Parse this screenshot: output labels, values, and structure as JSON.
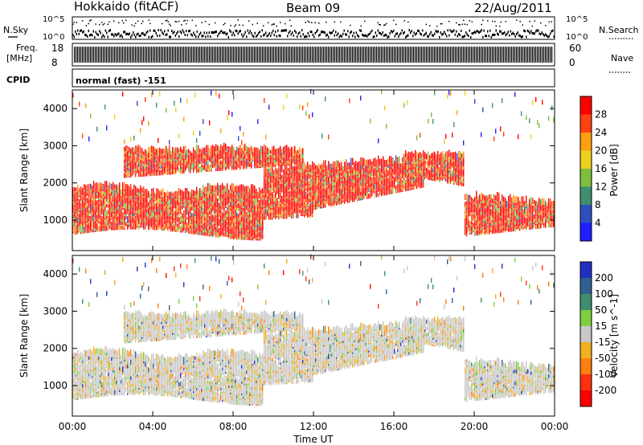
{
  "header": {
    "station": "Hokkaido (fitACF)",
    "beam": "Beam 09",
    "date": "22/Aug/2011"
  },
  "top_panels": {
    "nsky_label": "N.Sky",
    "nsky_ticks": [
      "10^5",
      "10^0"
    ],
    "nsearch_label": "N.Search",
    "freq_label": "Freq.",
    "freq_unit": "[MHz]",
    "freq_ticks": [
      "18",
      "8"
    ],
    "nave_label": "Nave",
    "nave_ticks": [
      "60",
      "0"
    ],
    "cpid_label": "CPID",
    "cpid_text": "normal (fast) -151"
  },
  "chart_data": [
    {
      "type": "heatmap",
      "name": "power-panel",
      "ylabel": "Slant Range [km]",
      "y_ticks": [
        1000,
        2000,
        3000,
        4000
      ],
      "ylim": [
        180,
        4500
      ],
      "xlim_hours": [
        0,
        24
      ],
      "colorbar": {
        "label": "Power [dB]",
        "ticks": [
          "4",
          "8",
          "12",
          "16",
          "20",
          "24",
          "28"
        ],
        "colors": [
          "#1f1fff",
          "#2f4fbf",
          "#3f8f6f",
          "#7fbf3f",
          "#efd020",
          "#ff9f10",
          "#ff4010",
          "#ff0000"
        ]
      },
      "bands_description_values": [
        {
          "start_h": 0,
          "end_h": 9.5,
          "range_km": [
            600,
            1800
          ],
          "level_db": 26
        },
        {
          "start_h": 3,
          "end_h": 11,
          "range_km": [
            2200,
            3000
          ],
          "level_db": 24
        },
        {
          "start_h": 11,
          "end_h": 17.5,
          "range_km": [
            1000,
            2600
          ],
          "level_db": 25
        },
        {
          "start_h": 19.5,
          "end_h": 24,
          "range_km": [
            600,
            1500
          ],
          "level_db": 26
        }
      ]
    },
    {
      "type": "heatmap",
      "name": "velocity-panel",
      "ylabel": "Slant Range [km]",
      "y_ticks": [
        1000,
        2000,
        3000,
        4000
      ],
      "ylim": [
        180,
        4500
      ],
      "xlim_hours": [
        0,
        24
      ],
      "x_ticks": [
        "00:00",
        "04:00",
        "08:00",
        "12:00",
        "16:00",
        "20:00",
        "00:00"
      ],
      "xlabel": "Time UT",
      "colorbar": {
        "label": "Velocity [m s^-1]",
        "ticks": [
          "200",
          "100",
          "50",
          "15",
          "-15",
          "-50",
          "-100",
          "-200"
        ],
        "colors": [
          "#2030c0",
          "#306090",
          "#3f8f6f",
          "#7fcf3f",
          "#c8c8c8",
          "#f0b020",
          "#ff7f10",
          "#ff3010",
          "#ff0000"
        ]
      }
    }
  ]
}
